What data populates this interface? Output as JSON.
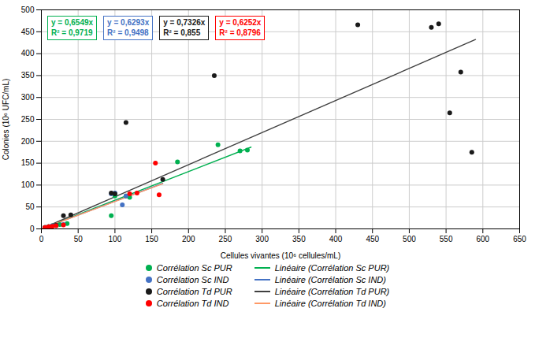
{
  "chart_data": {
    "type": "scatter",
    "xlabel": "Cellules vivantes (10⁶ cellules/mL)",
    "ylabel": "Colonies (10⁶ UFC/mL)",
    "xlim": [
      0,
      650
    ],
    "ylim": [
      0,
      500
    ],
    "xticks": [
      0,
      50,
      100,
      150,
      200,
      250,
      300,
      350,
      400,
      450,
      500,
      550,
      600,
      650
    ],
    "yticks": [
      0,
      50,
      100,
      150,
      200,
      250,
      300,
      350,
      400,
      450,
      500
    ],
    "grid": true,
    "legend": "bottom",
    "series": [
      {
        "name": "Corrélation Sc PUR",
        "type": "scatter",
        "color": "#00b050",
        "x": [
          5,
          10,
          15,
          20,
          25,
          35,
          95,
          100,
          115,
          120,
          185,
          240,
          270,
          280
        ],
        "values": [
          3,
          5,
          7,
          8,
          10,
          12,
          30,
          75,
          75,
          72,
          153,
          192,
          178,
          180
        ]
      },
      {
        "name": "Corrélation Sc IND",
        "type": "scatter",
        "color": "#4472c4",
        "x": [
          5,
          10,
          15,
          20,
          30,
          95,
          100,
          110,
          115
        ],
        "values": [
          3,
          5,
          7,
          8,
          10,
          80,
          82,
          55,
          75
        ]
      },
      {
        "name": "Corrélation Td PUR",
        "type": "scatter",
        "color": "#1a1a1a",
        "x": [
          5,
          10,
          20,
          30,
          40,
          95,
          100,
          115,
          165,
          235,
          430,
          530,
          540,
          555,
          570,
          585
        ],
        "values": [
          3,
          5,
          8,
          30,
          32,
          82,
          80,
          243,
          113,
          350,
          466,
          460,
          468,
          265,
          358,
          175
        ]
      },
      {
        "name": "Corrélation Td IND",
        "type": "scatter",
        "color": "#ff0000",
        "x": [
          5,
          10,
          15,
          20,
          30,
          120,
          130,
          155,
          160
        ],
        "values": [
          3,
          5,
          6,
          7,
          9,
          80,
          82,
          150,
          78
        ]
      },
      {
        "name": "Linéaire (Corrélation Sc PUR)",
        "type": "line",
        "color": "#00b050",
        "x": [
          0,
          285
        ],
        "values": [
          0,
          186.6465
        ]
      },
      {
        "name": "Linéaire (Corrélation Sc IND)",
        "type": "line",
        "color": "#4472c4",
        "x": [
          0,
          165
        ],
        "values": [
          0,
          103.8345
        ]
      },
      {
        "name": "Linéaire (Corrélation Td PUR)",
        "type": "line",
        "color": "#404040",
        "x": [
          0,
          590
        ],
        "values": [
          0,
          432.234
        ]
      },
      {
        "name": "Linéaire (Corrélation Td IND)",
        "type": "line",
        "color": "#ff9966",
        "x": [
          0,
          165
        ],
        "values": [
          0,
          103.158
        ]
      }
    ],
    "annotations": [
      {
        "text": "y = 0,6549x\nR² = 0,9719",
        "color": "#00b050"
      },
      {
        "text": "y = 0,6293x\nR² = 0,9498",
        "color": "#4472c4"
      },
      {
        "text": "y = 0,7326x\nR² = 0,855",
        "color": "#1a1a1a"
      },
      {
        "text": "y = 0,6252x\nR² = 0,8796",
        "color": "#ff0000"
      }
    ]
  }
}
